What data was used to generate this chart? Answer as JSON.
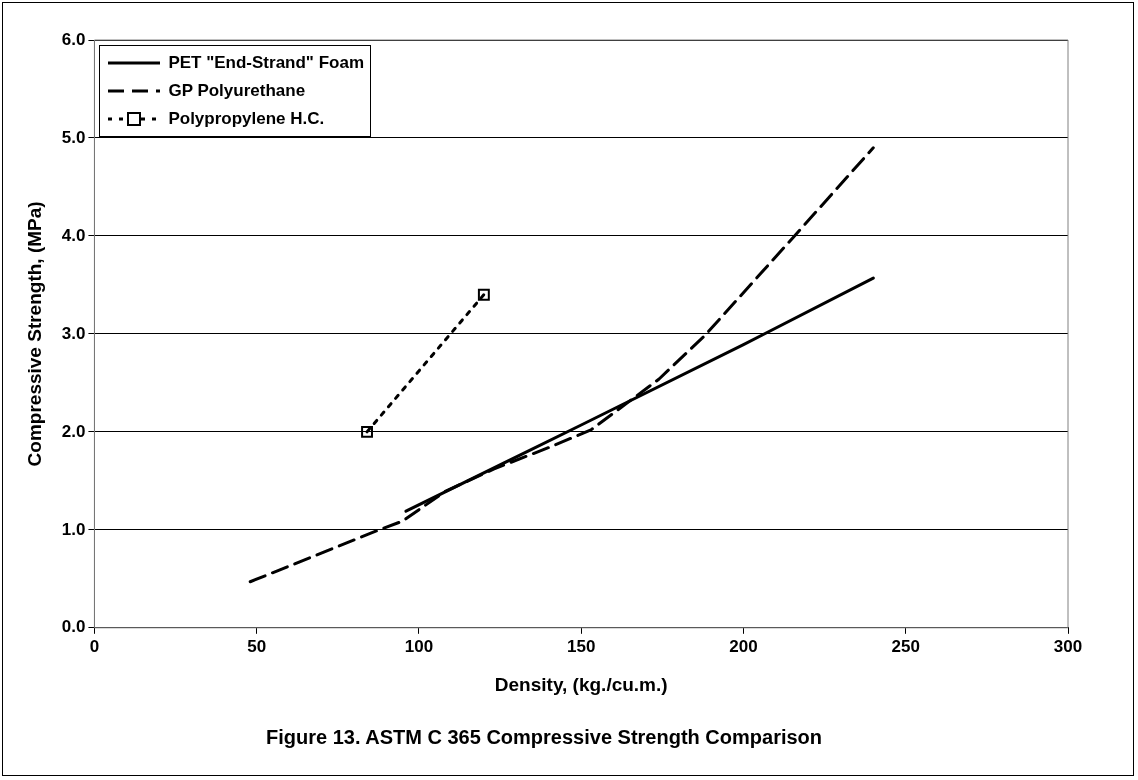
{
  "chart_data": {
    "type": "line",
    "title": "Figure 13. ASTM C 365 Compressive Strength Comparison",
    "xlabel": "Density, (kg./cu.m.)",
    "ylabel": "Compressive Strength, (MPa)",
    "xlim": [
      0,
      300
    ],
    "xticks": [
      0,
      50,
      100,
      150,
      200,
      250,
      300
    ],
    "ylim": [
      0,
      6
    ],
    "yticks": [
      {
        "value": 0,
        "label": "0.0"
      },
      {
        "value": 1,
        "label": "1.0"
      },
      {
        "value": 2,
        "label": "2.0"
      },
      {
        "value": 3,
        "label": "3.0"
      },
      {
        "value": 4,
        "label": "4.0"
      },
      {
        "value": 5,
        "label": "5.0"
      },
      {
        "value": 6,
        "label": "6.0"
      }
    ],
    "grid": "y",
    "legend": "top left",
    "series": [
      {
        "name": "PET \"End-Strand\" Foam",
        "color": "#000000",
        "line_style": "solid",
        "marker": "none",
        "x": [
          96,
          150,
          200,
          240
        ],
        "values": [
          1.19,
          2.07,
          2.89,
          3.57
        ]
      },
      {
        "name": "GP Polyurethane",
        "color": "#000000",
        "line_style": "dashed",
        "marker": "none",
        "x": [
          48,
          87,
          95,
          108,
          123,
          140,
          153,
          170,
          174,
          188,
          216,
          240
        ],
        "values": [
          0.47,
          0.99,
          1.09,
          1.39,
          1.62,
          1.84,
          2.02,
          2.44,
          2.54,
          2.98,
          4.01,
          4.9
        ]
      },
      {
        "name": "Polypropylene H.C.",
        "color": "#000000",
        "line_style": "dotted",
        "marker": "square",
        "x": [
          84,
          120
        ],
        "values": [
          2.0,
          3.4
        ]
      }
    ]
  }
}
